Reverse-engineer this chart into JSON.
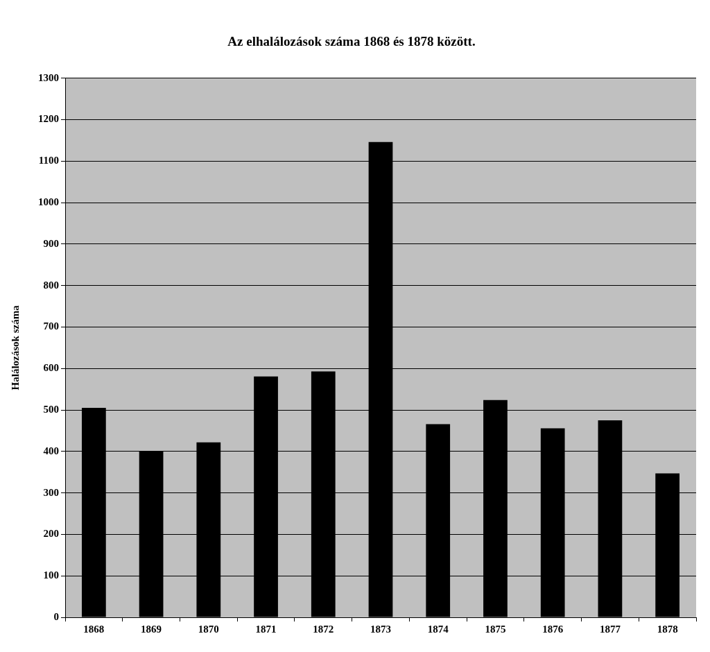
{
  "chart_data": {
    "type": "bar",
    "title": "Az elhalálozások száma 1868 és 1878 között.",
    "ylabel": "Halálozások száma",
    "categories": [
      "1868",
      "1869",
      "1870",
      "1871",
      "1872",
      "1873",
      "1874",
      "1875",
      "1876",
      "1877",
      "1878"
    ],
    "values": [
      505,
      400,
      422,
      581,
      593,
      1146,
      466,
      524,
      456,
      475,
      347
    ],
    "color": "#000000",
    "ylim": [
      0,
      1300
    ],
    "yticks": [
      0,
      100,
      200,
      300,
      400,
      500,
      600,
      700,
      800,
      900,
      1000,
      1100,
      1200,
      1300
    ],
    "grid": "y",
    "legend": false
  }
}
